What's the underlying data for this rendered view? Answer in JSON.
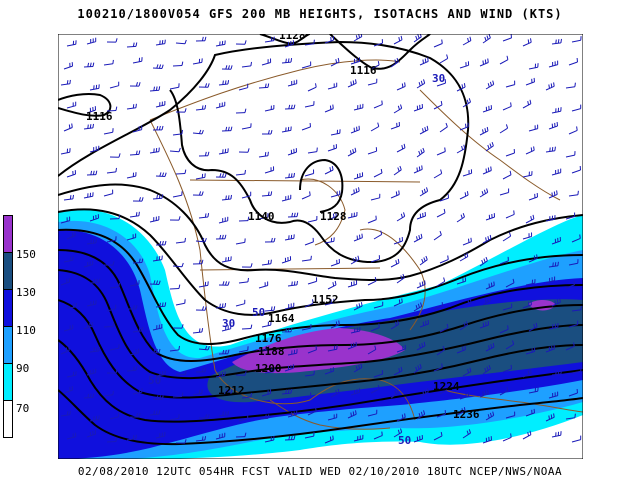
{
  "header": {
    "title": "100210/1800V054 GFS 200 MB  HEIGHTS, ISOTACHS AND WIND (KTS)"
  },
  "footer": {
    "text": "02/08/2010 12UTC 054HR FCST VALID WED 02/10/2010 18UTC  NCEP/NWS/NOAA"
  },
  "scale": {
    "colors": [
      "#9933cc",
      "#1a4e80",
      "#1010dd",
      "#1ea0ff",
      "#00eeff",
      "#ffffff"
    ],
    "labels": [
      "150",
      "130",
      "110",
      "90",
      "70"
    ]
  },
  "colors": {
    "coast": "#8a5a2a",
    "contour": "#000000",
    "barb": "#1a1ab8",
    "isotach_label": "#1a1ab8"
  },
  "height_labels": [
    "1128",
    "1116",
    "1116",
    "1140",
    "1128",
    "1152",
    "1164",
    "1176",
    "1188",
    "1200",
    "1212",
    "1224",
    "1236"
  ],
  "isotach_labels": [
    "30",
    "50",
    "30",
    "50",
    "50",
    "30"
  ]
}
